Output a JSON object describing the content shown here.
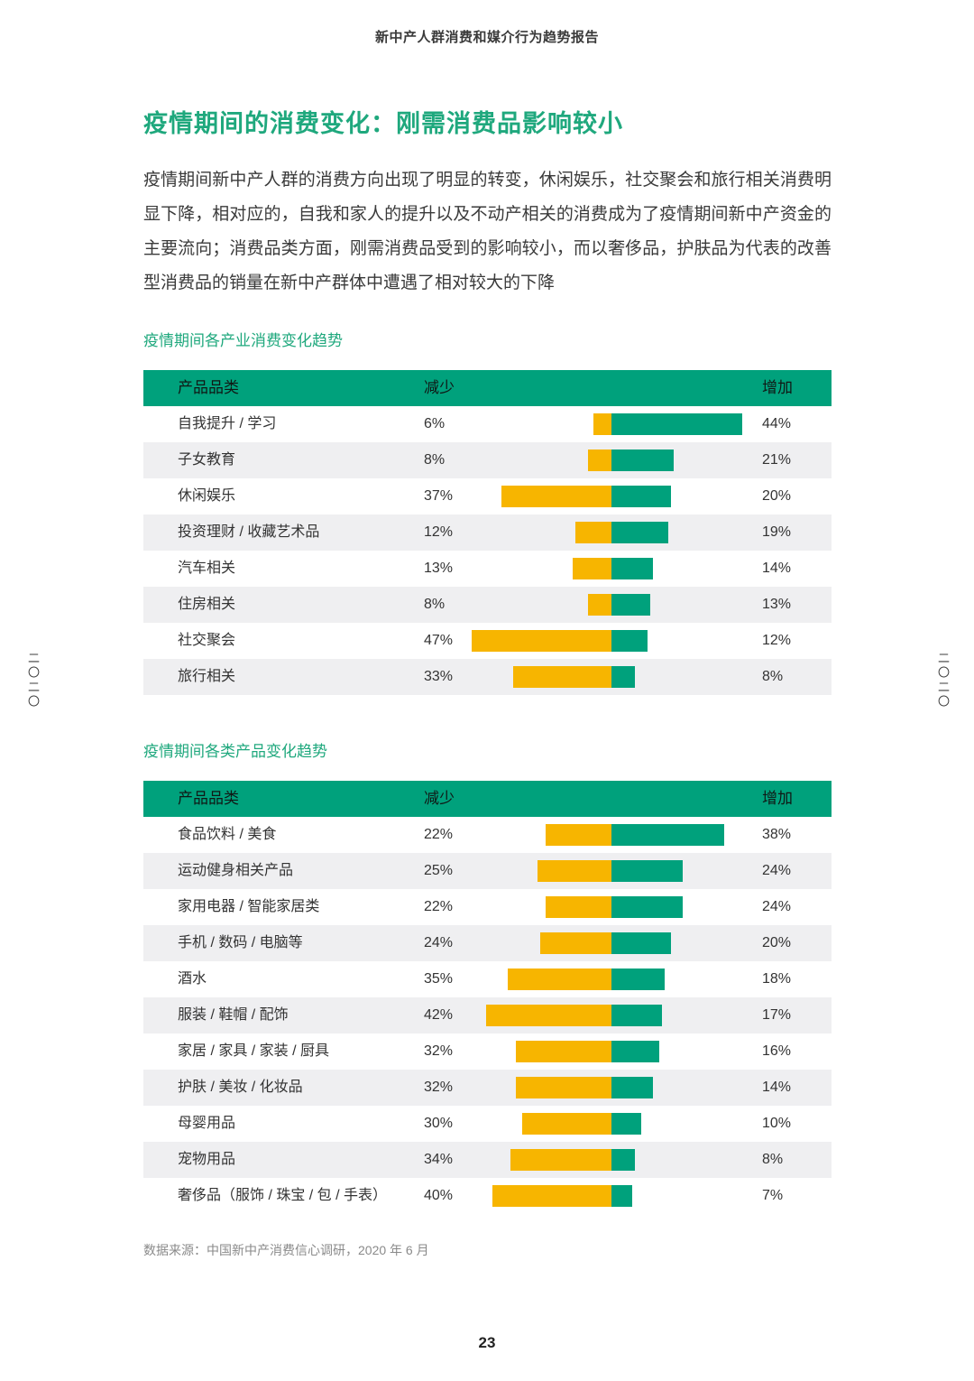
{
  "page": {
    "report_title": "新中产人群消费和媒介行为趋势报告",
    "section_title": "疫情期间的消费变化：刚需消费品影响较小",
    "intro_paragraph": "疫情期间新中产人群的消费方向出现了明显的转变，休闲娱乐，社交聚会和旅行相关消费明显下降，相对应的，自我和家人的提升以及不动产相关的消费成为了疫情期间新中产资金的主要流向；消费品类方面，刚需消费品受到的影响较小，而以奢侈品，护肤品为代表的改善型消费品的销量在新中产群体中遭遇了相对较大的下降",
    "source_note": "数据来源：中国新中产消费信心调研，2020 年 6 月",
    "page_number": "23",
    "side_marker": "二〇二〇"
  },
  "colors": {
    "accent_green": "#00A17C",
    "bar_yellow": "#F7B500",
    "title_green": "#1FA87D",
    "row_alt_bg": "#EFEFF1"
  },
  "charts": [
    {
      "subtitle": "疫情期间各产业消费变化趋势",
      "columns": {
        "category": "产品品类",
        "decrease": "减少",
        "increase": "增加"
      },
      "rows": [
        {
          "label": "自我提升 / 学习",
          "decrease": "6%",
          "increase": "44%"
        },
        {
          "label": "子女教育",
          "decrease": "8%",
          "increase": "21%"
        },
        {
          "label": "休闲娱乐",
          "decrease": "37%",
          "increase": "20%"
        },
        {
          "label": "投资理财 / 收藏艺术品",
          "decrease": "12%",
          "increase": "19%"
        },
        {
          "label": "汽车相关",
          "decrease": "13%",
          "increase": "14%"
        },
        {
          "label": "住房相关",
          "decrease": "8%",
          "increase": "13%"
        },
        {
          "label": "社交聚会",
          "decrease": "47%",
          "increase": "12%"
        },
        {
          "label": "旅行相关",
          "decrease": "33%",
          "increase": "8%"
        }
      ]
    },
    {
      "subtitle": "疫情期间各类产品变化趋势",
      "columns": {
        "category": "产品品类",
        "decrease": "减少",
        "increase": "增加"
      },
      "rows": [
        {
          "label": "食品饮料 / 美食",
          "decrease": "22%",
          "increase": "38%"
        },
        {
          "label": "运动健身相关产品",
          "decrease": "25%",
          "increase": "24%"
        },
        {
          "label": "家用电器 / 智能家居类",
          "decrease": "22%",
          "increase": "24%"
        },
        {
          "label": "手机 / 数码 / 电脑等",
          "decrease": "24%",
          "increase": "20%"
        },
        {
          "label": "酒水",
          "decrease": "35%",
          "increase": "18%"
        },
        {
          "label": "服装 / 鞋帽 / 配饰",
          "decrease": "42%",
          "increase": "17%"
        },
        {
          "label": "家居 / 家具 / 家装 / 厨具",
          "decrease": "32%",
          "increase": "16%"
        },
        {
          "label": "护肤 / 美妆 / 化妆品",
          "decrease": "32%",
          "increase": "14%"
        },
        {
          "label": "母婴用品",
          "decrease": "30%",
          "increase": "10%"
        },
        {
          "label": "宠物用品",
          "decrease": "34%",
          "increase": "8%"
        },
        {
          "label": "奢侈品（服饰 / 珠宝 / 包 / 手表）",
          "decrease": "40%",
          "increase": "7%"
        }
      ]
    }
  ],
  "chart_data": [
    {
      "type": "bar",
      "variant": "diverging-horizontal",
      "title": "疫情期间各产业消费变化趋势",
      "categories": [
        "自我提升 / 学习",
        "子女教育",
        "休闲娱乐",
        "投资理财 / 收藏艺术品",
        "汽车相关",
        "住房相关",
        "社交聚会",
        "旅行相关"
      ],
      "series": [
        {
          "name": "减少",
          "color": "#F7B500",
          "values": [
            6,
            8,
            37,
            12,
            13,
            8,
            47,
            33
          ]
        },
        {
          "name": "增加",
          "color": "#00A17C",
          "values": [
            44,
            21,
            20,
            19,
            14,
            13,
            12,
            8
          ]
        }
      ],
      "unit": "%",
      "xlim": [
        0,
        50
      ],
      "legend_position": "table-header",
      "grid": false
    },
    {
      "type": "bar",
      "variant": "diverging-horizontal",
      "title": "疫情期间各类产品变化趋势",
      "categories": [
        "食品饮料 / 美食",
        "运动健身相关产品",
        "家用电器 / 智能家居类",
        "手机 / 数码 / 电脑等",
        "酒水",
        "服装 / 鞋帽 / 配饰",
        "家居 / 家具 / 家装 / 厨具",
        "护肤 / 美妆 / 化妆品",
        "母婴用品",
        "宠物用品",
        "奢侈品（服饰 / 珠宝 / 包 / 手表）"
      ],
      "series": [
        {
          "name": "减少",
          "color": "#F7B500",
          "values": [
            22,
            25,
            22,
            24,
            35,
            42,
            32,
            32,
            30,
            34,
            40
          ]
        },
        {
          "name": "增加",
          "color": "#00A17C",
          "values": [
            38,
            24,
            24,
            20,
            18,
            17,
            16,
            14,
            10,
            8,
            7
          ]
        }
      ],
      "unit": "%",
      "xlim": [
        0,
        50
      ],
      "legend_position": "table-header",
      "grid": false
    }
  ]
}
